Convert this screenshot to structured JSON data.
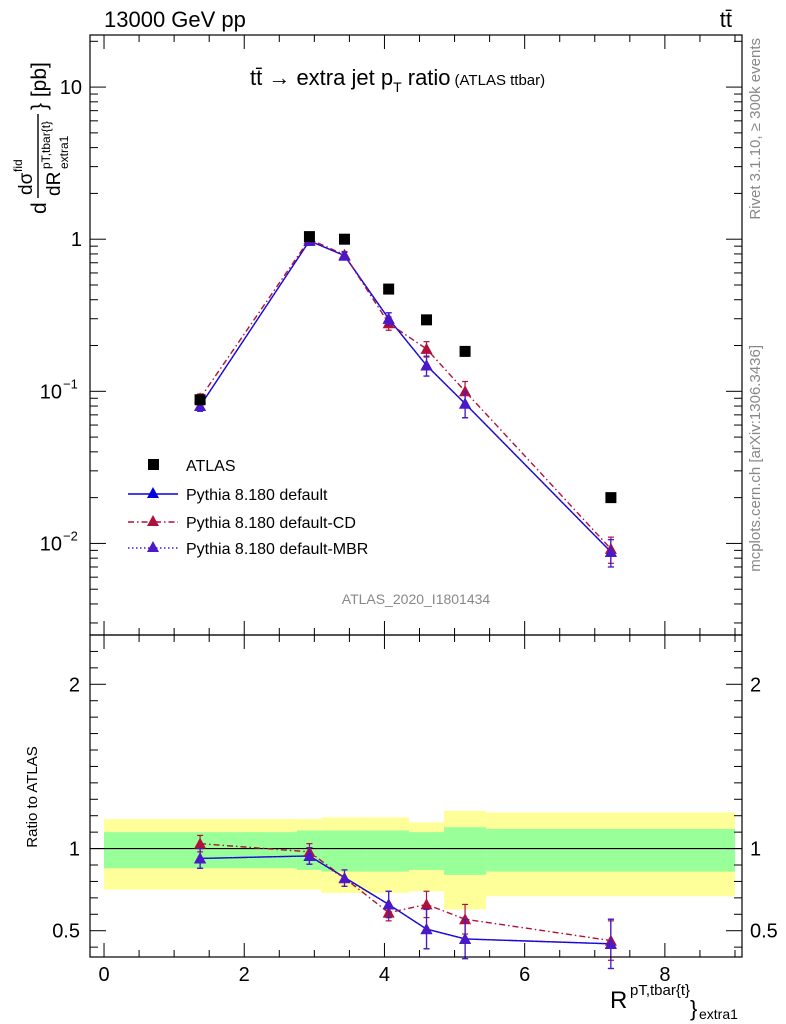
{
  "header": {
    "energy": "13000 GeV pp",
    "process": "tt̄"
  },
  "side_text": {
    "rivet": "Rivet 3.1.10, ≥ 300k events",
    "source": "mcplots.cern.ch [arXiv:1306.3436]"
  },
  "chart_data": [
    {
      "type": "scatter",
      "panel": "main",
      "title_main": "tt̄ → extra jet p",
      "title_sub": "T",
      "title_rest": " ratio",
      "title_small": "(ATLAS ttbar)",
      "ylabel": "dσ/dR extra1 [pb]",
      "ylabel_parts": {
        "d": "d",
        "num": "dσ",
        "num_sup": "fid",
        "den": "dR",
        "den_sup": "pT,tbar{t}",
        "den_sub": "extra1",
        "unit": "} [pb]"
      },
      "yscale": "log",
      "ylim": [
        0.0025,
        22
      ],
      "xlim": [
        -0.2,
        9.1
      ],
      "yticks": [
        {
          "value": 10,
          "label": "10"
        },
        {
          "value": 1,
          "label": "1"
        },
        {
          "value": 0.1,
          "label": "10",
          "exp": "−1"
        },
        {
          "value": 0.01,
          "label": "10",
          "exp": "−2"
        }
      ],
      "watermark": "ATLAS_2020_I1801434",
      "legend_position": "lower-left",
      "series": [
        {
          "name": "ATLAS",
          "style": "square",
          "color": "#000000",
          "x": [
            1.37,
            2.93,
            3.43,
            4.06,
            4.6,
            5.15,
            7.23
          ],
          "y": [
            0.088,
            1.04,
            1.0,
            0.47,
            0.295,
            0.183,
            0.02
          ]
        },
        {
          "name": "Pythia 8.180 default",
          "style": "solid",
          "color": "#0000dd",
          "x": [
            1.37,
            2.93,
            3.43,
            4.06,
            4.6,
            5.15,
            7.23
          ],
          "y": [
            0.08,
            0.975,
            0.78,
            0.3,
            0.148,
            0.083,
            0.0088
          ],
          "err": [
            0.006,
            0.05,
            0.04,
            0.028,
            0.022,
            0.016,
            0.0018
          ]
        },
        {
          "name": "Pythia 8.180 default-CD",
          "style": "dashdot",
          "color": "#b0103a",
          "x": [
            1.37,
            2.93,
            3.43,
            4.06,
            4.6,
            5.15,
            7.23
          ],
          "y": [
            0.09,
            1.0,
            0.79,
            0.28,
            0.19,
            0.1,
            0.0092
          ],
          "err": [
            0.006,
            0.05,
            0.04,
            0.028,
            0.022,
            0.016,
            0.0018
          ]
        },
        {
          "name": "Pythia 8.180 default-MBR",
          "style": "dotted",
          "color": "#4b19c8",
          "x": [
            1.37,
            2.93,
            3.43,
            4.06,
            4.6,
            5.15,
            7.23
          ],
          "y": [
            0.08,
            0.975,
            0.78,
            0.3,
            0.148,
            0.083,
            0.0088
          ],
          "err": [
            0.006,
            0.05,
            0.04,
            0.028,
            0.022,
            0.016,
            0.0018
          ]
        }
      ]
    },
    {
      "type": "line",
      "panel": "ratio",
      "ylabel": "Ratio to ATLAS",
      "xlabel_main": "R",
      "xlabel_sup": "pT,tbar{t}",
      "xlabel_brace": "}",
      "xlabel_sub": "extra1",
      "xlim": [
        -0.2,
        9.1
      ],
      "ylim": [
        0.34,
        2.3
      ],
      "yticks": [
        {
          "value": 0.5,
          "label": "0.5"
        },
        {
          "value": 1,
          "label": "1"
        },
        {
          "value": 2,
          "label": "2"
        }
      ],
      "xticks": [
        {
          "value": 0,
          "label": "0"
        },
        {
          "value": 2,
          "label": "2"
        },
        {
          "value": 4,
          "label": "4"
        },
        {
          "value": 6,
          "label": "6"
        },
        {
          "value": 8,
          "label": "8"
        }
      ],
      "bands": [
        {
          "x0": 0.0,
          "x1": 2.75,
          "inner": [
            0.88,
            1.1
          ],
          "outer": [
            0.75,
            1.18
          ]
        },
        {
          "x0": 2.75,
          "x1": 3.1,
          "inner": [
            0.87,
            1.11
          ],
          "outer": [
            0.75,
            1.18
          ]
        },
        {
          "x0": 3.1,
          "x1": 3.75,
          "inner": [
            0.86,
            1.11
          ],
          "outer": [
            0.73,
            1.19
          ]
        },
        {
          "x0": 3.75,
          "x1": 4.35,
          "inner": [
            0.86,
            1.11
          ],
          "outer": [
            0.73,
            1.19
          ]
        },
        {
          "x0": 4.35,
          "x1": 4.85,
          "inner": [
            0.87,
            1.1
          ],
          "outer": [
            0.74,
            1.16
          ]
        },
        {
          "x0": 4.85,
          "x1": 5.45,
          "inner": [
            0.84,
            1.13
          ],
          "outer": [
            0.63,
            1.23
          ]
        },
        {
          "x0": 5.45,
          "x1": 9.0,
          "inner": [
            0.86,
            1.12
          ],
          "outer": [
            0.71,
            1.22
          ]
        }
      ],
      "series": [
        {
          "name": "Pythia 8.180 default",
          "style": "solid",
          "color": "#0000dd",
          "x": [
            1.37,
            2.93,
            4.06,
            4.6,
            5.15,
            7.23
          ],
          "y": [
            0.94,
            0.955,
            0.66,
            0.51,
            0.45,
            0.42
          ],
          "err": [
            0.06,
            0.05,
            0.08,
            0.12,
            0.12,
            0.15
          ]
        },
        {
          "name": "Pythia 8.180 default-CD",
          "style": "dashdot",
          "color": "#b0103a",
          "x": [
            1.37,
            2.93,
            3.43,
            4.06,
            4.6,
            5.15,
            7.23
          ],
          "y": [
            1.03,
            0.98,
            0.82,
            0.61,
            0.66,
            0.57,
            0.44
          ],
          "err": [
            0.05,
            0.05,
            0.05,
            0.05,
            0.08,
            0.09,
            0.12
          ]
        },
        {
          "name": "Pythia 8.180 default-MBR",
          "style": "dotted",
          "color": "#4b19c8",
          "x": [
            1.37,
            2.93,
            3.43,
            4.06,
            4.6,
            5.15,
            7.23
          ],
          "y": [
            0.94,
            0.955,
            0.82,
            0.66,
            0.51,
            0.45,
            0.42
          ],
          "err": [
            0.06,
            0.05,
            0.05,
            0.08,
            0.12,
            0.12,
            0.15
          ]
        }
      ]
    }
  ]
}
